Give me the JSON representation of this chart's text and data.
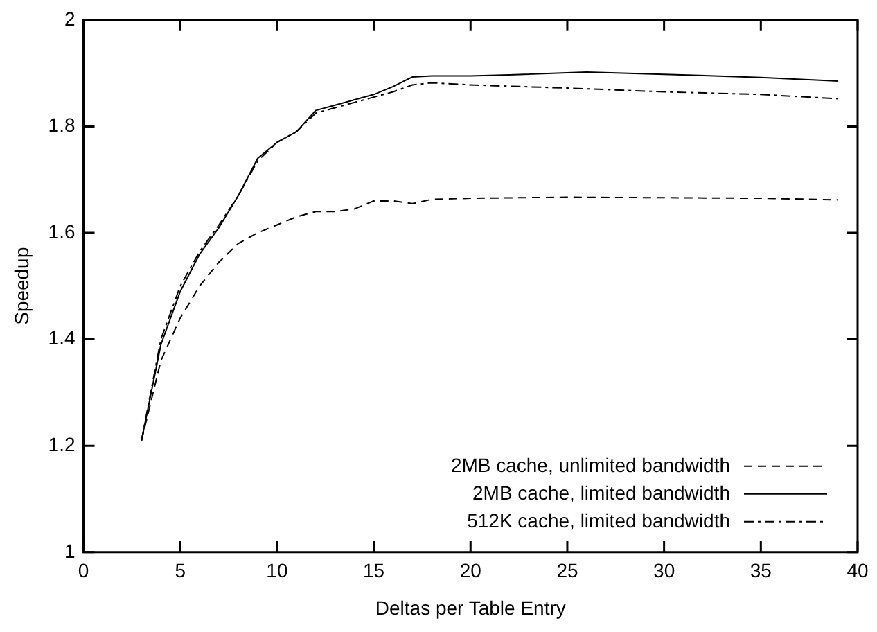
{
  "chart_data": {
    "type": "line",
    "xlabel": "Deltas per Table Entry",
    "ylabel": "Speedup",
    "xlim": [
      0,
      40
    ],
    "xticks": [
      0,
      5,
      10,
      15,
      20,
      25,
      30,
      35,
      40
    ],
    "ylim": [
      1,
      2
    ],
    "yticks": [
      1,
      1.2,
      1.4,
      1.6,
      1.8,
      2
    ],
    "grid": false,
    "legend": "bottom right",
    "marker": "none",
    "series": [
      {
        "name": "2MB cache, unlimited bandwidth",
        "color": "#000000",
        "line_style": "dashed",
        "x": [
          3,
          4,
          5,
          6,
          7,
          8,
          9,
          10,
          11,
          12,
          13,
          14,
          15,
          16,
          17,
          18,
          20,
          25,
          30,
          35,
          39
        ],
        "values": [
          1.21,
          1.36,
          1.44,
          1.5,
          1.545,
          1.58,
          1.6,
          1.615,
          1.63,
          1.64,
          1.64,
          1.645,
          1.66,
          1.66,
          1.655,
          1.663,
          1.665,
          1.667,
          1.666,
          1.665,
          1.662
        ]
      },
      {
        "name": "2MB cache, limited bandwidth",
        "color": "#000000",
        "line_style": "solid",
        "x": [
          3,
          4,
          5,
          6,
          7,
          8,
          9,
          10,
          11,
          12,
          13,
          14,
          15,
          16,
          17,
          18,
          20,
          22,
          26,
          30,
          35,
          39
        ],
        "values": [
          1.21,
          1.39,
          1.49,
          1.56,
          1.61,
          1.67,
          1.74,
          1.77,
          1.79,
          1.83,
          1.84,
          1.85,
          1.86,
          1.875,
          1.893,
          1.895,
          1.895,
          1.897,
          1.902,
          1.898,
          1.892,
          1.885
        ]
      },
      {
        "name": "512K cache, limited bandwidth",
        "color": "#000000",
        "line_style": "dashdot",
        "x": [
          3,
          4,
          5,
          6,
          7,
          8,
          9,
          10,
          11,
          12,
          13,
          14,
          15,
          16,
          17,
          18,
          20,
          25,
          30,
          35,
          39
        ],
        "values": [
          1.21,
          1.4,
          1.5,
          1.565,
          1.615,
          1.67,
          1.735,
          1.77,
          1.79,
          1.825,
          1.835,
          1.845,
          1.855,
          1.865,
          1.878,
          1.882,
          1.878,
          1.872,
          1.865,
          1.86,
          1.852
        ]
      }
    ]
  }
}
